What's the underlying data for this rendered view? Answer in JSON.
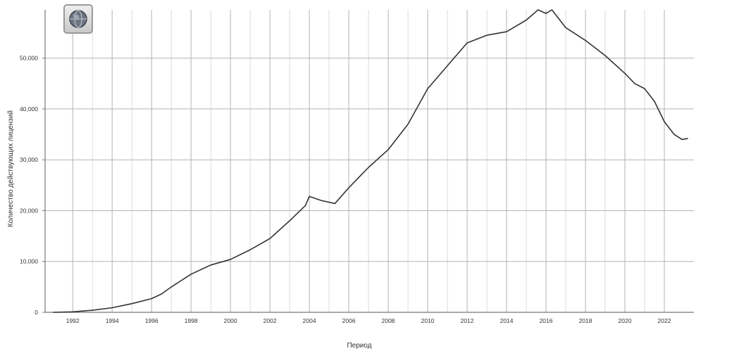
{
  "chart_data": {
    "type": "line",
    "title": "",
    "xlabel": "Период",
    "ylabel": "Количество действующих лицензий",
    "xlim": [
      1990.6,
      2023.5
    ],
    "ylim": [
      0,
      59500
    ],
    "grid": true,
    "x_ticks": [
      "1992",
      "1994",
      "1996",
      "1998",
      "2000",
      "2002",
      "2004",
      "2006",
      "2008",
      "2010",
      "2012",
      "2014",
      "2016",
      "2018",
      "2020",
      "2022"
    ],
    "y_ticks": [
      "0",
      "10,000",
      "20,000",
      "30,000",
      "40,000",
      "50,000"
    ],
    "y_tick_values": [
      0,
      10000,
      20000,
      30000,
      40000,
      50000
    ],
    "series": [
      {
        "color": "#333333",
        "points": [
          [
            1991,
            0
          ],
          [
            1992,
            100
          ],
          [
            1993,
            400
          ],
          [
            1994,
            900
          ],
          [
            1995,
            1700
          ],
          [
            1996,
            2700
          ],
          [
            1996.5,
            3600
          ],
          [
            1997,
            5000
          ],
          [
            1998,
            7500
          ],
          [
            1999,
            9300
          ],
          [
            2000,
            10400
          ],
          [
            2001,
            12300
          ],
          [
            2002,
            14500
          ],
          [
            2003,
            18000
          ],
          [
            2003.8,
            21000
          ],
          [
            2004,
            22800
          ],
          [
            2004.6,
            22000
          ],
          [
            2005.3,
            21400
          ],
          [
            2006,
            24500
          ],
          [
            2007,
            28500
          ],
          [
            2008,
            32000
          ],
          [
            2009,
            37000
          ],
          [
            2010,
            44000
          ],
          [
            2011,
            48500
          ],
          [
            2012,
            53000
          ],
          [
            2013,
            54500
          ],
          [
            2014,
            55200
          ],
          [
            2015,
            57500
          ],
          [
            2015.6,
            59500
          ],
          [
            2016,
            58800
          ],
          [
            2016.3,
            59500
          ],
          [
            2017,
            56000
          ],
          [
            2018,
            53500
          ],
          [
            2019,
            50500
          ],
          [
            2020,
            47000
          ],
          [
            2020.5,
            45000
          ],
          [
            2021,
            44000
          ],
          [
            2021.5,
            41500
          ],
          [
            2022,
            37500
          ],
          [
            2022.5,
            35000
          ],
          [
            2022.9,
            34000
          ],
          [
            2023.2,
            34200
          ]
        ]
      }
    ]
  },
  "badge": {
    "icon": "globe-icon"
  }
}
